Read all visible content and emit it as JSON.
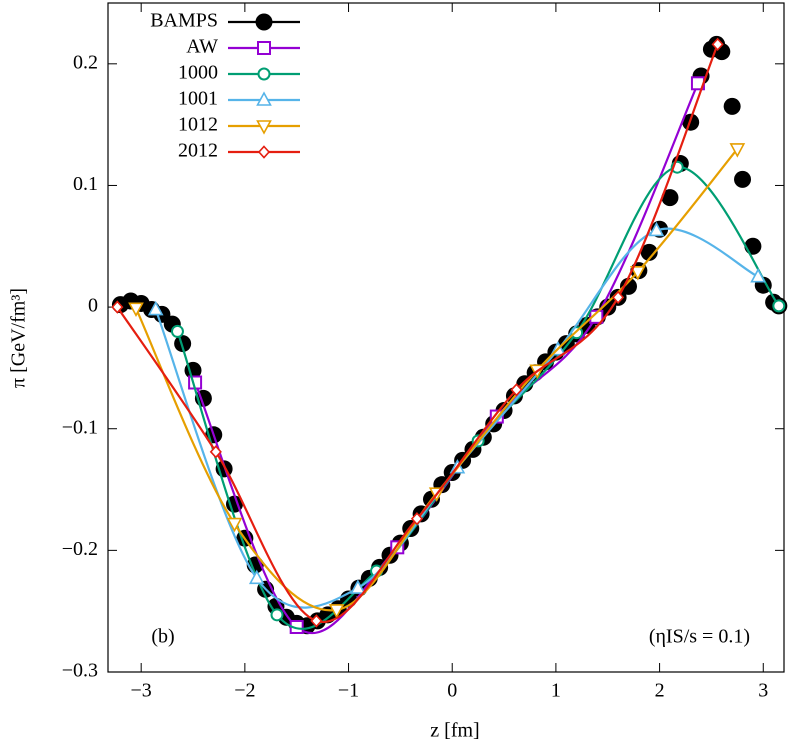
{
  "chart_data": {
    "type": "line",
    "xlabel": "z [fm]",
    "ylabel": "π [GeV/fm³]",
    "annotations": [
      "(b)",
      "(ηIS/s = 0.1)"
    ],
    "xlim": [
      -3.32,
      3.2
    ],
    "ylim": [
      -0.3,
      0.25
    ],
    "xticks": [
      {
        "value": -3,
        "label": "−3"
      },
      {
        "value": -2,
        "label": "−2"
      },
      {
        "value": -1,
        "label": "−1"
      },
      0,
      1,
      2,
      3
    ],
    "yticks": [
      {
        "value": -0.3,
        "label": "−0.3"
      },
      {
        "value": -0.2,
        "label": "−0.2"
      },
      {
        "value": -0.1,
        "label": "−0.1"
      },
      0,
      0.1,
      0.2
    ],
    "grid": false,
    "legend": "upper left",
    "series": [
      {
        "name": "BAMPS",
        "color": "#000000",
        "marker": "filled-circle",
        "line": false,
        "x": [
          -3.2,
          -3.1,
          -3.0,
          -2.9,
          -2.8,
          -2.7,
          -2.6,
          -2.5,
          -2.4,
          -2.3,
          -2.2,
          -2.1,
          -2.0,
          -1.9,
          -1.8,
          -1.7,
          -1.6,
          -1.5,
          -1.4,
          -1.3,
          -1.2,
          -1.1,
          -1.0,
          -0.9,
          -0.8,
          -0.7,
          -0.6,
          -0.5,
          -0.4,
          -0.3,
          -0.2,
          -0.1,
          0.0,
          0.1,
          0.2,
          0.3,
          0.4,
          0.5,
          0.6,
          0.7,
          0.8,
          0.9,
          1.0,
          1.1,
          1.2,
          1.3,
          1.4,
          1.5,
          1.6,
          1.7,
          1.8,
          1.9,
          2.0,
          2.1,
          2.2,
          2.3,
          2.4,
          2.5,
          2.55,
          2.6,
          2.7,
          2.8,
          2.9,
          3.0,
          3.1,
          3.15
        ],
        "values": [
          0.002,
          0.005,
          0.003,
          -0.002,
          -0.006,
          -0.014,
          -0.03,
          -0.052,
          -0.075,
          -0.105,
          -0.133,
          -0.162,
          -0.19,
          -0.212,
          -0.232,
          -0.246,
          -0.255,
          -0.26,
          -0.262,
          -0.258,
          -0.253,
          -0.248,
          -0.24,
          -0.231,
          -0.223,
          -0.214,
          -0.204,
          -0.194,
          -0.182,
          -0.17,
          -0.158,
          -0.146,
          -0.136,
          -0.126,
          -0.117,
          -0.107,
          -0.096,
          -0.085,
          -0.073,
          -0.063,
          -0.054,
          -0.045,
          -0.037,
          -0.03,
          -0.022,
          -0.015,
          -0.008,
          0.0,
          0.008,
          0.017,
          0.03,
          0.045,
          0.064,
          0.09,
          0.118,
          0.152,
          0.19,
          0.212,
          0.216,
          0.21,
          0.165,
          0.105,
          0.05,
          0.018,
          0.004,
          0.001
        ]
      },
      {
        "name": "AW",
        "color": "#9400d3",
        "marker": "square",
        "line": true,
        "x": [
          -2.48,
          -1.5,
          -0.53,
          0.43,
          1.39,
          2.37
        ],
        "values": [
          -0.062,
          -0.263,
          -0.1975,
          -0.09,
          -0.008,
          0.184
        ]
      },
      {
        "name": "1000",
        "color": "#009e73",
        "marker": "circle",
        "line": true,
        "x": [
          -2.65,
          -1.69,
          -0.73,
          0.25,
          1.2,
          2.17,
          3.15
        ],
        "values": [
          -0.02,
          -0.253,
          -0.217,
          -0.11,
          -0.021,
          0.115,
          0.001
        ]
      },
      {
        "name": "1001",
        "color": "#56b4e9",
        "marker": "triangle-up",
        "line": true,
        "x": [
          -2.86,
          -1.885,
          -0.91,
          0.05,
          1.02,
          1.97,
          2.95
        ],
        "values": [
          -0.002,
          -0.223,
          -0.231,
          -0.132,
          -0.035,
          0.063,
          0.025
        ]
      },
      {
        "name": "1012",
        "color": "#e69f00",
        "marker": "triangle-down",
        "line": true,
        "x": [
          -3.05,
          -2.1,
          -1.115,
          -0.15,
          0.82,
          1.79,
          2.75
        ],
        "values": [
          -0.001,
          -0.178,
          -0.249,
          -0.153,
          -0.052,
          0.029,
          0.13
        ]
      },
      {
        "name": "2012",
        "color": "#e51e10",
        "marker": "diamond",
        "line": true,
        "x": [
          -3.23,
          -2.28,
          -1.31,
          -0.34,
          0.62,
          1.6,
          2.56
        ],
        "values": [
          0,
          -0.119,
          -0.258,
          -0.174,
          -0.068,
          0.008,
          0.216
        ]
      }
    ]
  }
}
